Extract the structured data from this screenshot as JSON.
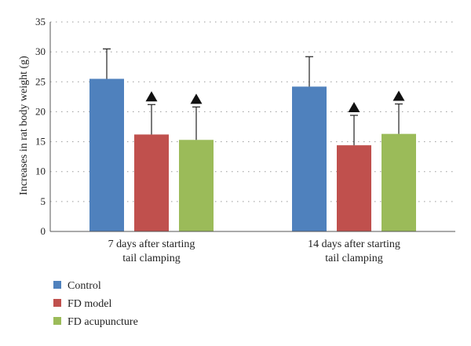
{
  "chart_data": {
    "type": "bar",
    "title": "",
    "ylabel": "Increases in rat body weight (g)",
    "xlabel": "",
    "ylim": [
      0,
      35
    ],
    "yticks": [
      0,
      5,
      10,
      15,
      20,
      25,
      30,
      35
    ],
    "grid": "dotted-horizontal",
    "legend_position": "bottom-left",
    "categories": [
      [
        "7 days after starting",
        "tail clamping"
      ],
      [
        "14 days after starting",
        "tail clamping"
      ]
    ],
    "series": [
      {
        "name": "Control",
        "color": "#4f81bd",
        "values": [
          25.5,
          24.2
        ],
        "errors": [
          5.0,
          5.0
        ],
        "markers": [
          false,
          false
        ]
      },
      {
        "name": "FD model",
        "color": "#c0504d",
        "values": [
          16.2,
          14.4
        ],
        "errors": [
          5.0,
          5.0
        ],
        "markers": [
          true,
          true
        ]
      },
      {
        "name": "FD acupuncture",
        "color": "#9bbb59",
        "values": [
          15.3,
          16.3
        ],
        "errors": [
          5.5,
          5.0
        ],
        "markers": [
          true,
          true
        ]
      }
    ],
    "marker_symbol": "▲"
  }
}
